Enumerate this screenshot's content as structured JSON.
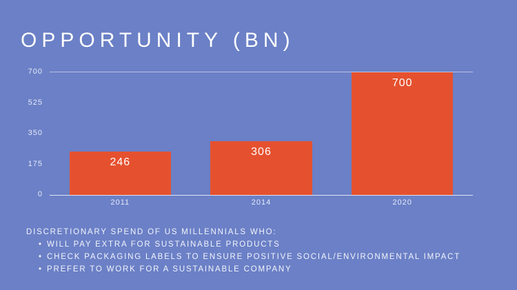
{
  "title": "OPPORTUNITY (BN)",
  "colors": {
    "background": "#6b80c6",
    "bar": "#e5512f",
    "text": "#ffffff",
    "gridline": "#b9c2e0",
    "axis": "#dfe4f5"
  },
  "chart_data": {
    "type": "bar",
    "title": "OPPORTUNITY (BN)",
    "categories": [
      "2011",
      "2014",
      "2020"
    ],
    "values": [
      246,
      306,
      700
    ],
    "xlabel": "",
    "ylabel": "",
    "ylim": [
      0,
      700
    ],
    "yticks": [
      0,
      175,
      350,
      525,
      700
    ],
    "grid": "top-line-and-baseline-only",
    "legend": "none",
    "value_labels_inside_bars": true
  },
  "footer": {
    "heading": "DISCRETIONARY SPEND OF US MILLENNIALS WHO:",
    "bullet_glyph": "•",
    "bullets": [
      "WILL PAY EXTRA FOR SUSTAINABLE PRODUCTS",
      "CHECK PACKAGING LABELS TO ENSURE POSITIVE SOCIAL/ENVIRONMENTAL IMPACT",
      "PREFER TO WORK FOR A SUSTAINABLE COMPANY"
    ]
  }
}
